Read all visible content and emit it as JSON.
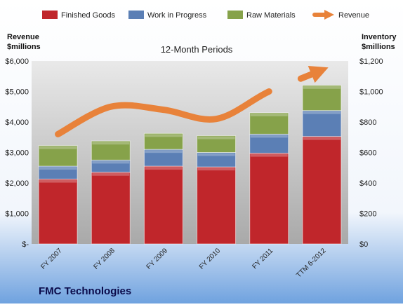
{
  "chart_data": {
    "type": "bar",
    "stacked": true,
    "subtitle": "12-Month Periods",
    "company": "FMC Technologies",
    "left_axis": {
      "label_line1": "Revenue",
      "label_line2": "$millions",
      "range": [
        0,
        6000
      ],
      "ticks": [
        "$-",
        "$1,000",
        "$2,000",
        "$3,000",
        "$4,000",
        "$5,000",
        "$6,000"
      ]
    },
    "right_axis": {
      "label_line1": "Inventory",
      "label_line2": "$millions",
      "range": [
        0,
        1200
      ],
      "ticks": [
        "$0",
        "$200",
        "$400",
        "$600",
        "$800",
        "$1,000",
        "$1,200"
      ]
    },
    "categories": [
      "FY 2007",
      "FY 2008",
      "FY 2009",
      "FY 2010",
      "FY 2011",
      "TTM 6-2012"
    ],
    "series": [
      {
        "name": "Finished Goods",
        "axis": "right",
        "color": "#c0262b",
        "values": [
          425,
          470,
          510,
          505,
          595,
          705
        ]
      },
      {
        "name": "Work in Progress",
        "axis": "right",
        "color": "#5b7fb5",
        "values": [
          85,
          80,
          110,
          95,
          125,
          170
        ]
      },
      {
        "name": "Raw Materials",
        "axis": "right",
        "color": "#86a24a",
        "values": [
          135,
          125,
          105,
          110,
          140,
          165
        ]
      }
    ],
    "line_series": {
      "name": "Revenue",
      "axis": "left",
      "color": "#e8823a",
      "values": [
        3600,
        4500,
        4400,
        4100,
        5000,
        5700
      ]
    },
    "grid": false,
    "legend": "top"
  }
}
